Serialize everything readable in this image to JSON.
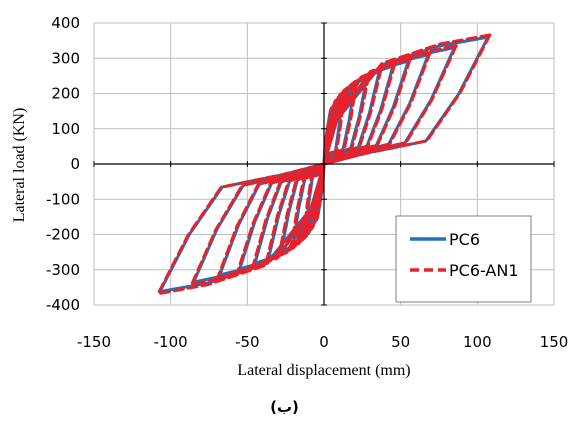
{
  "figure_caption": "(ب)",
  "colors": {
    "blue_series": "#1f73b7",
    "red_series": "#e8212b",
    "grid": "#bfbfbf",
    "axis": "#000000"
  },
  "chart_data": {
    "type": "line",
    "title": "",
    "xlabel": "Lateral displacement (mm)",
    "ylabel": "Lateral load (KN)",
    "xlim": [
      -150,
      150
    ],
    "ylim": [
      -400,
      400
    ],
    "x_ticks": [
      -150,
      -100,
      -50,
      0,
      50,
      100,
      150
    ],
    "y_ticks": [
      400,
      300,
      200,
      100,
      0,
      -100,
      -200,
      -300,
      -400
    ],
    "x_tick_labels": [
      "-150",
      "-100",
      "-50",
      "0",
      "50",
      "100",
      "150"
    ],
    "y_tick_labels": [
      "400",
      "300",
      "200",
      "100",
      "0",
      "-100",
      "-200",
      "-300",
      "-400"
    ],
    "grid": true,
    "legend_position": "lower-right inside",
    "cycle_peaks": [
      {
        "x": 12,
        "y": 195,
        "xn": -12,
        "yn": -195
      },
      {
        "x": 20,
        "y": 225,
        "xn": -20,
        "yn": -225
      },
      {
        "x": 28,
        "y": 245,
        "xn": -28,
        "yn": -250
      },
      {
        "x": 36,
        "y": 262,
        "xn": -36,
        "yn": -265
      },
      {
        "x": 45,
        "y": 278,
        "xn": -45,
        "yn": -282
      },
      {
        "x": 55,
        "y": 292,
        "xn": -55,
        "yn": -298
      },
      {
        "x": 68,
        "y": 310,
        "xn": -68,
        "yn": -315
      },
      {
        "x": 85,
        "y": 330,
        "xn": -85,
        "yn": -335
      },
      {
        "x": 107,
        "y": 360,
        "xn": -107,
        "yn": -362
      }
    ],
    "series": [
      {
        "name": "PC6",
        "color": "#1f73b7",
        "dash": "solid"
      },
      {
        "name": "PC6-AN1",
        "color": "#e8212b",
        "dash": "dashed"
      }
    ]
  }
}
